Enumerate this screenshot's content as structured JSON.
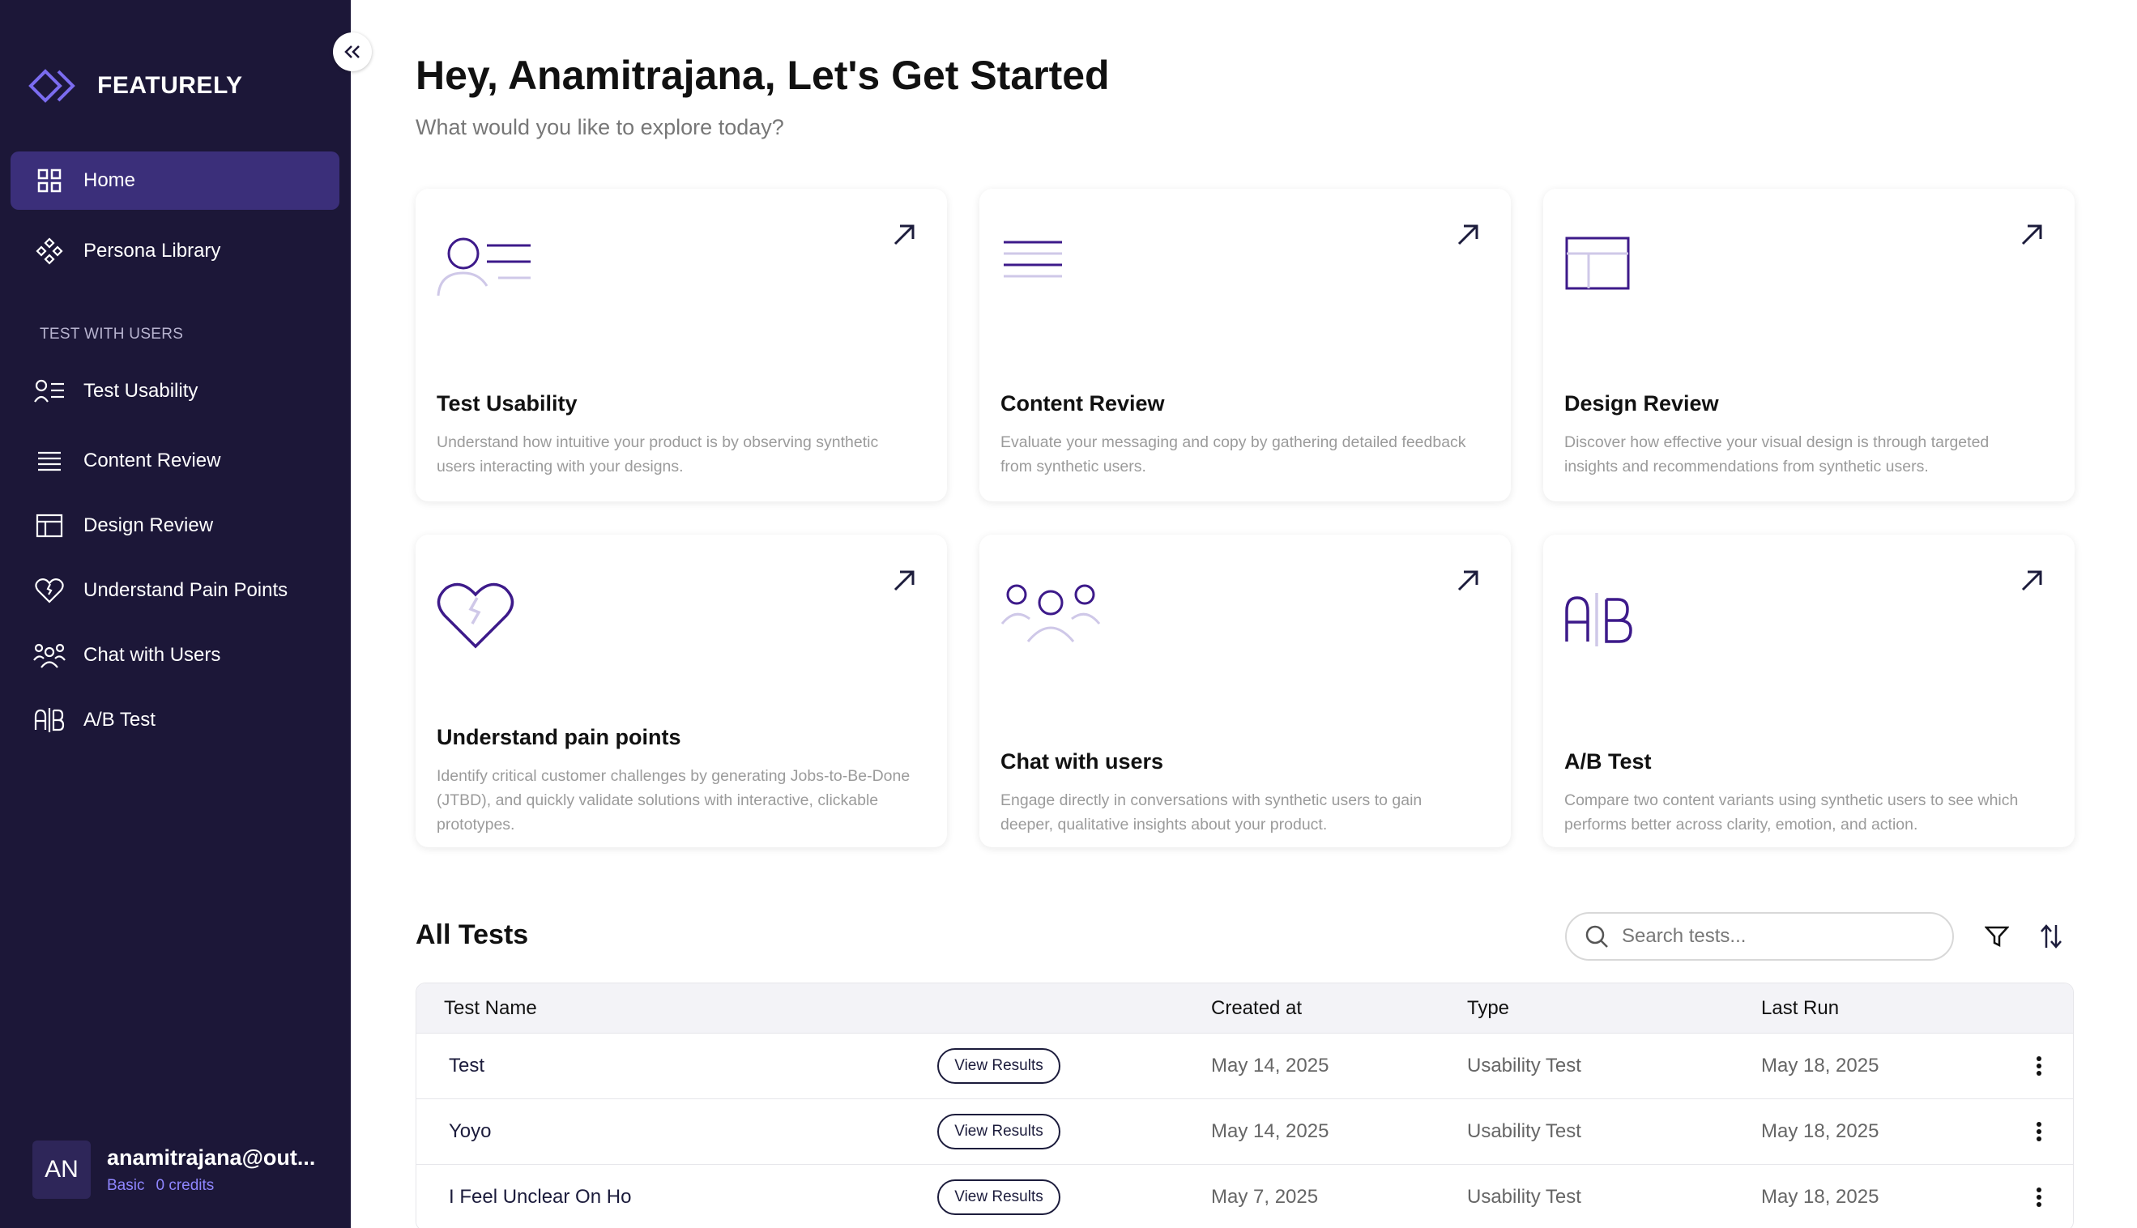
{
  "brand": {
    "name": "FEATURELY"
  },
  "sidebar": {
    "home": "Home",
    "persona_library": "Persona Library",
    "section_label": "TEST WITH USERS",
    "items": [
      {
        "label": "Test Usability",
        "icon": "person-list-icon"
      },
      {
        "label": "Content Review",
        "icon": "lines-icon"
      },
      {
        "label": "Design Review",
        "icon": "layout-icon"
      },
      {
        "label": "Understand Pain Points",
        "icon": "heart-icon"
      },
      {
        "label": "Chat with Users",
        "icon": "users-icon"
      },
      {
        "label": "A/B Test",
        "icon": "ab-icon"
      }
    ]
  },
  "user": {
    "initials": "AN",
    "email": "anamitrajana@out...",
    "plan": "Basic",
    "credits": "0 credits"
  },
  "header": {
    "title": "Hey, Anamitrajana, Let's Get Started",
    "subtitle": "What would you like to explore today?"
  },
  "cards": [
    {
      "title": "Test Usability",
      "desc": "Understand how intuitive your product is by observing synthetic users interacting with your designs."
    },
    {
      "title": "Content Review",
      "desc": "Evaluate your messaging and copy by gathering detailed feedback from synthetic users."
    },
    {
      "title": "Design Review",
      "desc": "Discover how effective your visual design is through targeted insights and recommendations from synthetic users."
    },
    {
      "title": "Understand pain points",
      "desc": "Identify critical customer challenges by generating Jobs-to-Be-Done (JTBD), and quickly validate solutions with interactive, clickable prototypes."
    },
    {
      "title": "Chat with users",
      "desc": "Engage directly in conversations with synthetic users to gain deeper, qualitative insights about your product."
    },
    {
      "title": "A/B Test",
      "desc": "Compare two content variants using synthetic users to see which performs better across clarity, emotion, and action."
    }
  ],
  "tests": {
    "title": "All Tests",
    "search_placeholder": "Search tests...",
    "columns": {
      "name": "Test Name",
      "created": "Created at",
      "type": "Type",
      "last_run": "Last Run"
    },
    "view_label": "View Results",
    "rows": [
      {
        "name": "Test",
        "created": "May 14, 2025",
        "type": "Usability Test",
        "last_run": "May 18, 2025"
      },
      {
        "name": "Yoyo",
        "created": "May 14, 2025",
        "type": "Usability Test",
        "last_run": "May 18, 2025"
      },
      {
        "name": "I Feel Unclear On Ho",
        "created": "May 7, 2025",
        "type": "Usability Test",
        "last_run": "May 18, 2025"
      }
    ]
  },
  "colors": {
    "sidebar_bg": "#1c1738",
    "accent": "#3b2f7a",
    "icon_purple": "#3d1a8a"
  }
}
